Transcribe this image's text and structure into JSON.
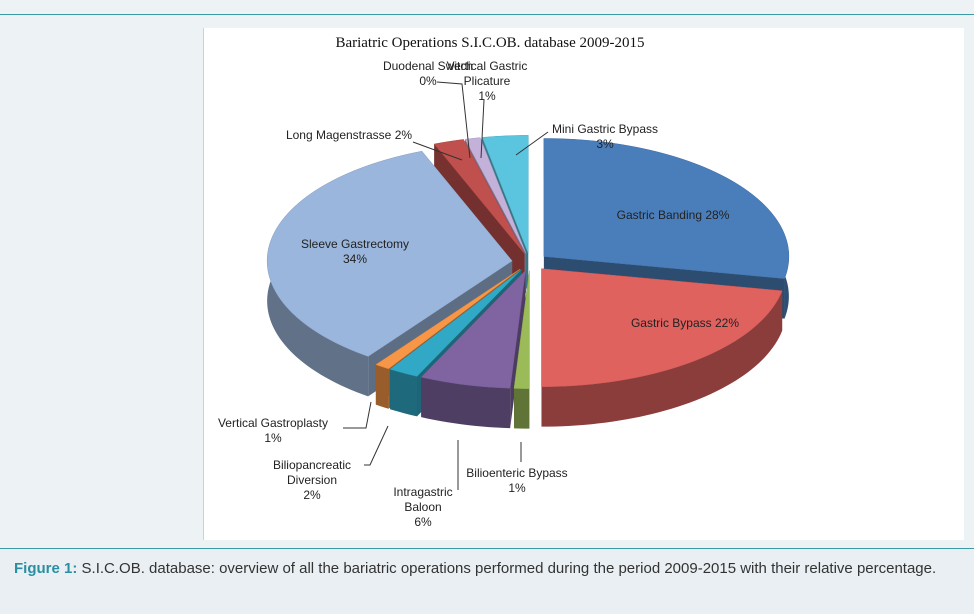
{
  "chart_data": {
    "type": "pie",
    "title": "Bariatric Operations S.I.C.OB. database 2009-2015",
    "categories": [
      "Gastric Banding",
      "Gastric Bypass",
      "Bilioenteric Bypass",
      "Intragastric Baloon",
      "Biliopancreatic Diversion",
      "Vertical Gastroplasty",
      "Sleeve Gastrectomy",
      "Long Magenstrasse",
      "Duodenal Switch",
      "Vertical Gastric Plicature",
      "Mini Gastric Bypass"
    ],
    "values": [
      28,
      22,
      1,
      6,
      2,
      1,
      34,
      2,
      0,
      1,
      3
    ],
    "value_labels": [
      "28%",
      "22%",
      "1%",
      "6%",
      "2%",
      "1%",
      "34%",
      "2%",
      "0%",
      "1%",
      "3%"
    ],
    "colors": [
      "#4a7ebb",
      "#e0625f",
      "#9bbb59",
      "#8064a2",
      "#31a9c6",
      "#f79646",
      "#9bb6dc",
      "#c0504d",
      "#1f497d",
      "#c3b1da",
      "#5bc4de"
    ]
  },
  "caption": {
    "label": "Figure 1:",
    "text": "S.I.C.OB. database: overview of all the bariatric operations performed during the period 2009-2015 with their relative percentage."
  }
}
